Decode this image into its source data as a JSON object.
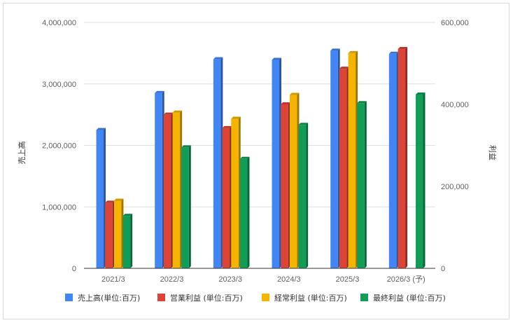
{
  "chart_data": {
    "type": "bar",
    "categories": [
      "2021/3",
      "2022/3",
      "2023/3",
      "2024/3",
      "2025/3",
      "2026/3 (予)"
    ],
    "left_axis": {
      "label": "売上高",
      "ylim": [
        0,
        4000000
      ],
      "ticks": [
        "0",
        "1,000,000",
        "2,000,000",
        "3,000,000",
        "4,000,000"
      ],
      "tick_values": [
        0,
        1000000,
        2000000,
        3000000,
        4000000
      ]
    },
    "right_axis": {
      "label": "利益",
      "ylim": [
        0,
        600000
      ],
      "ticks": [
        "0",
        "200,000",
        "400,000",
        "600,000"
      ],
      "tick_values": [
        0,
        200000,
        400000,
        600000
      ]
    },
    "series": [
      {
        "name": "売上高(単位:百万)",
        "axis": "left",
        "color": "#4285f4",
        "values": [
          2250000,
          2850000,
          3400000,
          3390000,
          3540000,
          3490000
        ]
      },
      {
        "name": "営業利益 (単位:百万)",
        "axis": "right",
        "color": "#db4437",
        "values": [
          160000,
          375000,
          342000,
          400000,
          487000,
          535000
        ]
      },
      {
        "name": "経常利益 (単位:百万)",
        "axis": "right",
        "color": "#f4b400",
        "values": [
          165000,
          380000,
          365000,
          423000,
          525000,
          null
        ]
      },
      {
        "name": "最終利益 (単位:百万)",
        "axis": "right",
        "color": "#0f9d58",
        "values": [
          128000,
          295000,
          267000,
          350000,
          403000,
          424000
        ]
      }
    ],
    "grid": true,
    "legend_position": "bottom"
  }
}
